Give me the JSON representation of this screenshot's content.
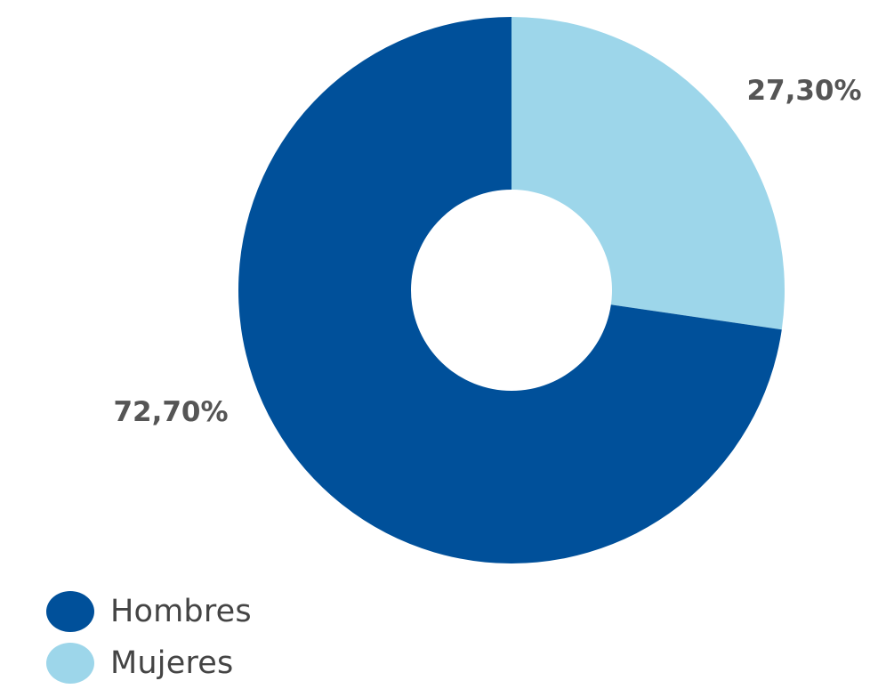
{
  "chart_data": {
    "type": "pie",
    "variant": "donut",
    "categories": [
      "Hombres",
      "Mujeres"
    ],
    "values": [
      72.7,
      27.3
    ],
    "data_labels": [
      "72,70%",
      "27,30%"
    ],
    "colors": [
      "#00509A",
      "#9DD6EA"
    ],
    "legend": {
      "placement": "bottom-left",
      "entries": [
        "Hombres",
        "Mujeres"
      ]
    }
  }
}
